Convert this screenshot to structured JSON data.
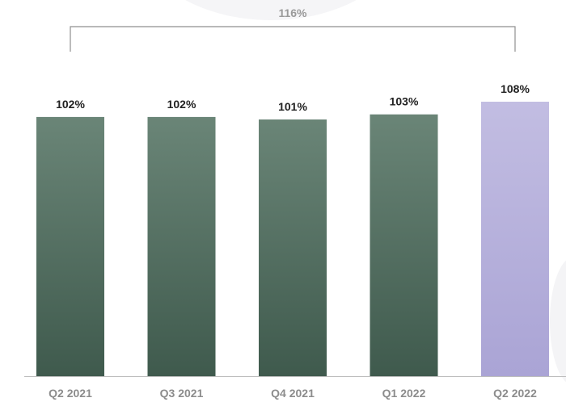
{
  "chart_data": {
    "type": "bar",
    "categories": [
      "Q2 2021",
      "Q3 2021",
      "Q4 2021",
      "Q1 2022",
      "Q2 2022"
    ],
    "values": [
      102,
      102,
      101,
      103,
      108
    ],
    "data_labels": [
      "102%",
      "102%",
      "101%",
      "103%",
      "108%"
    ],
    "highlight_index": 4,
    "ylim": [
      0,
      108
    ],
    "grid": false,
    "title": "",
    "xlabel": "",
    "ylabel": "",
    "bracket": {
      "label": "116%",
      "from_category": "Q2 2021",
      "to_category": "Q2 2022"
    },
    "colors": {
      "bar_top": "#6a8577",
      "bar_bottom": "#3f5a4d",
      "highlight_top": "#c2bde2",
      "highlight_bottom": "#aaa4d5",
      "axis": "#bdbdbd",
      "bracket": "#8f8f8f"
    }
  }
}
